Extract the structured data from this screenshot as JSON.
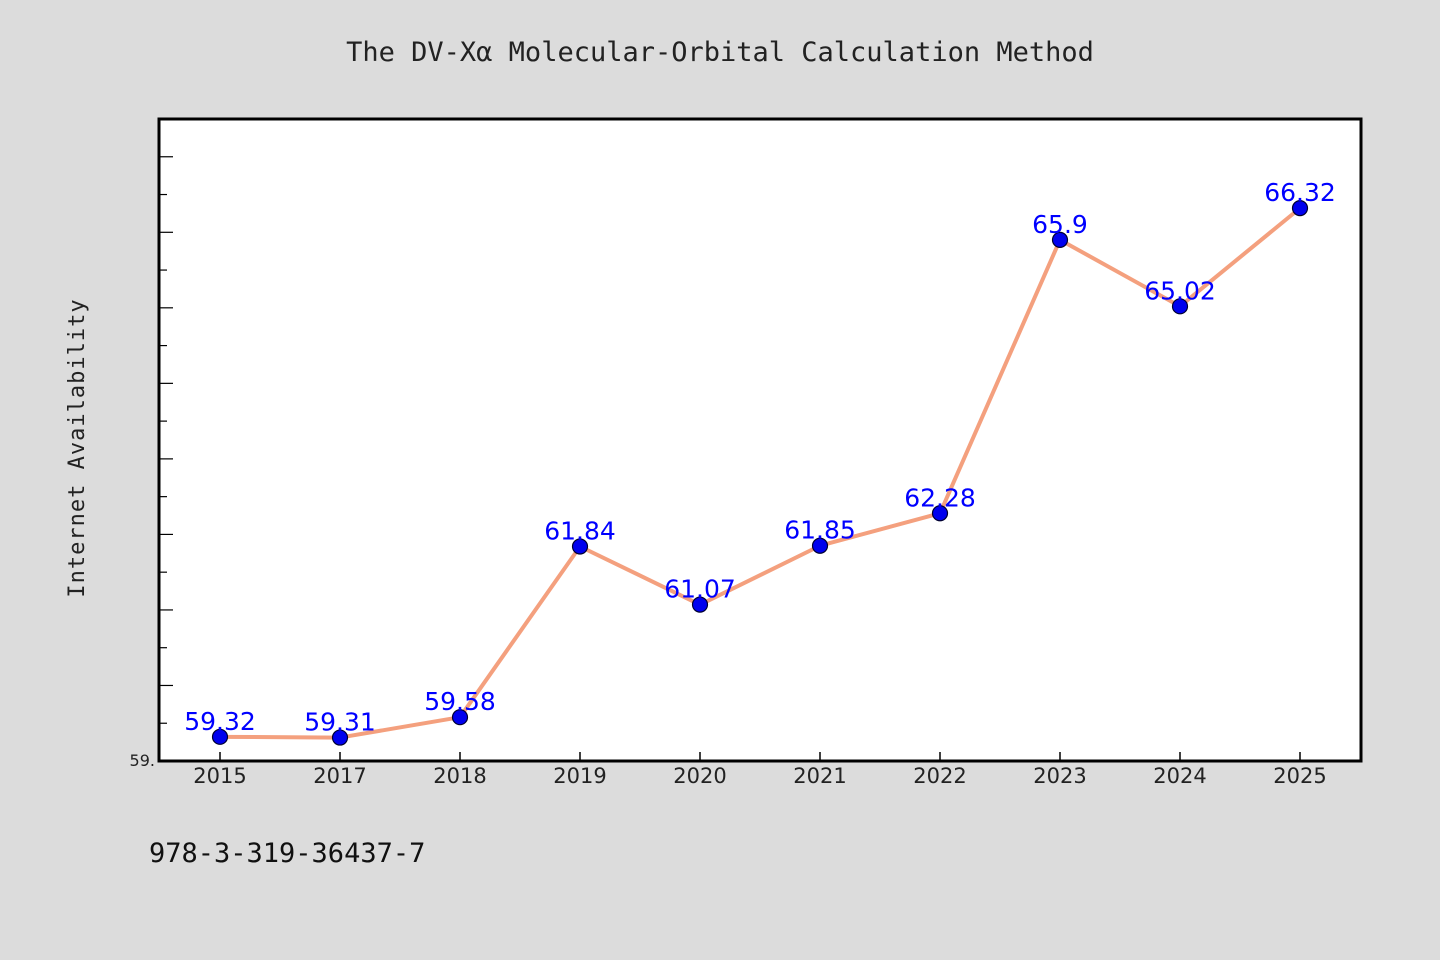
{
  "chart_data": {
    "type": "line",
    "title": "The DV-Xα Molecular-Orbital Calculation Method",
    "ylabel": "Internet Availability",
    "xlabel": "",
    "categories": [
      "2015",
      "2017",
      "2018",
      "2019",
      "2020",
      "2021",
      "2022",
      "2023",
      "2024",
      "2025"
    ],
    "values": [
      59.32,
      59.31,
      59.58,
      61.84,
      61.07,
      61.85,
      62.28,
      65.9,
      65.02,
      66.32
    ],
    "data_labels": [
      "59.32",
      "59.31",
      "59.58",
      "61.84",
      "61.07",
      "61.85",
      "62.28",
      "65.9",
      "65.02",
      "66.32"
    ],
    "y_min_label": "59.",
    "ylim": [
      59,
      67.5
    ],
    "grid": false,
    "legend": "none",
    "line_color": "#f4a07e",
    "marker_color": "#0000ee",
    "label_color": "#0000ff"
  },
  "footer": {
    "isbn": "978-3-319-36437-7"
  }
}
